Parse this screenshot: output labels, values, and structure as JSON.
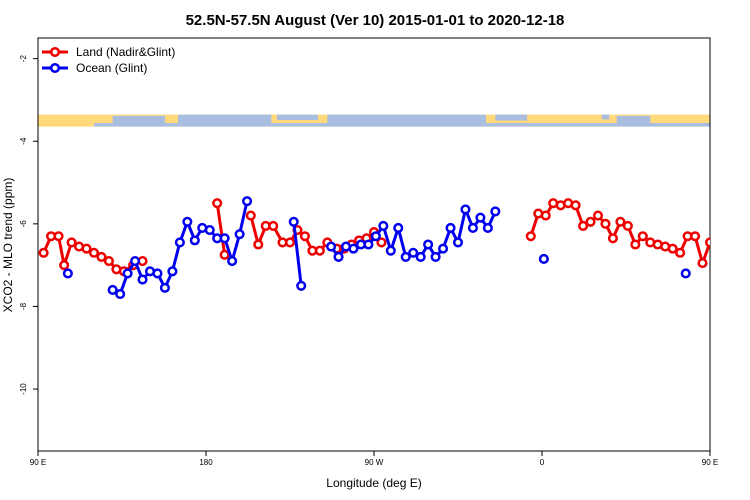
{
  "chart_data": {
    "type": "line",
    "title": "52.5N-57.5N August (Ver 10)   2015-01-01 to 2020-12-18",
    "xlabel": "Longitude (deg E)",
    "ylabel": "XCO2 - MLO trend (ppm)",
    "xlim": [
      90,
      450
    ],
    "ylim": [
      -11.5,
      -1.5
    ],
    "x_ticks": [
      {
        "value": 90,
        "label": "90 E"
      },
      {
        "value": 180,
        "label": "180"
      },
      {
        "value": 270,
        "label": "90 W"
      },
      {
        "value": 360,
        "label": "0"
      },
      {
        "value": 450,
        "label": "90 E"
      },
      {
        "value": 540,
        "label": "180"
      }
    ],
    "y_ticks": [
      {
        "value": -2,
        "label": "-2"
      },
      {
        "value": -4,
        "label": "-4"
      },
      {
        "value": -6,
        "label": "-6"
      },
      {
        "value": -8,
        "label": "-8"
      },
      {
        "value": -10,
        "label": "-10"
      }
    ],
    "legend_position": "top-left",
    "map_strip": {
      "y_value": -3.5,
      "land_color": "#ffd97a",
      "ocean_color": "#a8bde0"
    },
    "series": [
      {
        "name": "Land (Nadir&Glint)",
        "color": "#ee0000",
        "segments": [
          [
            [
              93,
              -6.7
            ],
            [
              97,
              -6.3
            ],
            [
              101,
              -6.3
            ],
            [
              104,
              -7.0
            ],
            [
              108,
              -6.45
            ],
            [
              112,
              -6.55
            ],
            [
              116,
              -6.6
            ],
            [
              120,
              -6.7
            ],
            [
              124,
              -6.8
            ],
            [
              128,
              -6.9
            ],
            [
              132,
              -7.1
            ],
            [
              136,
              -7.15
            ],
            [
              141,
              -7.0
            ],
            [
              146,
              -6.9
            ]
          ],
          [
            [
              186,
              -5.5
            ],
            [
              190,
              -6.75
            ]
          ],
          [
            [
              204,
              -5.8
            ],
            [
              208,
              -6.5
            ],
            [
              212,
              -6.05
            ],
            [
              216,
              -6.05
            ],
            [
              221,
              -6.45
            ],
            [
              225,
              -6.45
            ],
            [
              229,
              -6.15
            ],
            [
              233,
              -6.3
            ],
            [
              237,
              -6.65
            ],
            [
              241,
              -6.65
            ],
            [
              245,
              -6.45
            ],
            [
              250,
              -6.6
            ],
            [
              254,
              -6.6
            ],
            [
              258,
              -6.5
            ],
            [
              262,
              -6.4
            ],
            [
              266,
              -6.35
            ],
            [
              270,
              -6.2
            ],
            [
              274,
              -6.45
            ]
          ],
          [
            [
              354,
              -6.3
            ],
            [
              358,
              -5.75
            ],
            [
              362,
              -5.8
            ],
            [
              366,
              -5.5
            ],
            [
              370,
              -5.55
            ],
            [
              374,
              -5.5
            ],
            [
              378,
              -5.55
            ],
            [
              382,
              -6.05
            ],
            [
              386,
              -5.95
            ],
            [
              390,
              -5.8
            ],
            [
              394,
              -6.0
            ],
            [
              398,
              -6.35
            ],
            [
              402,
              -5.95
            ],
            [
              406,
              -6.05
            ],
            [
              410,
              -6.5
            ],
            [
              414,
              -6.3
            ],
            [
              418,
              -6.45
            ],
            [
              422,
              -6.5
            ],
            [
              426,
              -6.55
            ],
            [
              430,
              -6.6
            ],
            [
              434,
              -6.7
            ],
            [
              438,
              -6.3
            ],
            [
              442,
              -6.3
            ],
            [
              446,
              -6.95
            ],
            [
              450,
              -6.45
            ],
            [
              455,
              -6.55
            ],
            [
              459,
              -6.6
            ],
            [
              463,
              -6.7
            ],
            [
              467,
              -6.8
            ],
            [
              471,
              -6.9
            ],
            [
              475,
              -7.1
            ],
            [
              479,
              -7.15
            ],
            [
              484,
              -7.0
            ],
            [
              488,
              -6.95
            ]
          ]
        ]
      },
      {
        "name": "Ocean (Glint)",
        "color": "#0000ee",
        "segments": [
          [
            [
              106,
              -7.2
            ]
          ],
          [
            [
              130,
              -7.6
            ],
            [
              134,
              -7.7
            ],
            [
              138,
              -7.2
            ],
            [
              142,
              -6.9
            ],
            [
              146,
              -7.35
            ],
            [
              150,
              -7.15
            ],
            [
              154,
              -7.2
            ],
            [
              158,
              -7.55
            ],
            [
              162,
              -7.15
            ],
            [
              166,
              -6.45
            ],
            [
              170,
              -5.95
            ],
            [
              174,
              -6.4
            ],
            [
              178,
              -6.1
            ],
            [
              182,
              -6.15
            ],
            [
              186,
              -6.35
            ],
            [
              190,
              -6.35
            ],
            [
              194,
              -6.9
            ],
            [
              198,
              -6.25
            ],
            [
              202,
              -5.45
            ]
          ],
          [
            [
              227,
              -5.95
            ],
            [
              231,
              -7.5
            ]
          ],
          [
            [
              247,
              -6.55
            ],
            [
              251,
              -6.8
            ],
            [
              255,
              -6.55
            ],
            [
              259,
              -6.6
            ],
            [
              263,
              -6.5
            ],
            [
              267,
              -6.5
            ],
            [
              271,
              -6.3
            ],
            [
              275,
              -6.05
            ],
            [
              279,
              -6.65
            ],
            [
              283,
              -6.1
            ],
            [
              287,
              -6.8
            ],
            [
              291,
              -6.7
            ],
            [
              295,
              -6.8
            ],
            [
              299,
              -6.5
            ],
            [
              303,
              -6.8
            ],
            [
              307,
              -6.6
            ],
            [
              311,
              -6.1
            ],
            [
              315,
              -6.45
            ],
            [
              319,
              -5.65
            ],
            [
              323,
              -6.1
            ],
            [
              327,
              -5.85
            ],
            [
              331,
              -6.1
            ],
            [
              335,
              -5.7
            ]
          ],
          [
            [
              361,
              -6.85
            ]
          ],
          [
            [
              437,
              -7.2
            ]
          ],
          [
            [
              456,
              -7.6
            ],
            [
              460,
              -7.7
            ],
            [
              464,
              -7.25
            ],
            [
              468,
              -6.9
            ],
            [
              472,
              -7.35
            ],
            [
              476,
              -7.15
            ],
            [
              480,
              -7.15
            ],
            [
              484,
              -7.55
            ],
            [
              488,
              -7.15
            ]
          ]
        ]
      }
    ]
  }
}
